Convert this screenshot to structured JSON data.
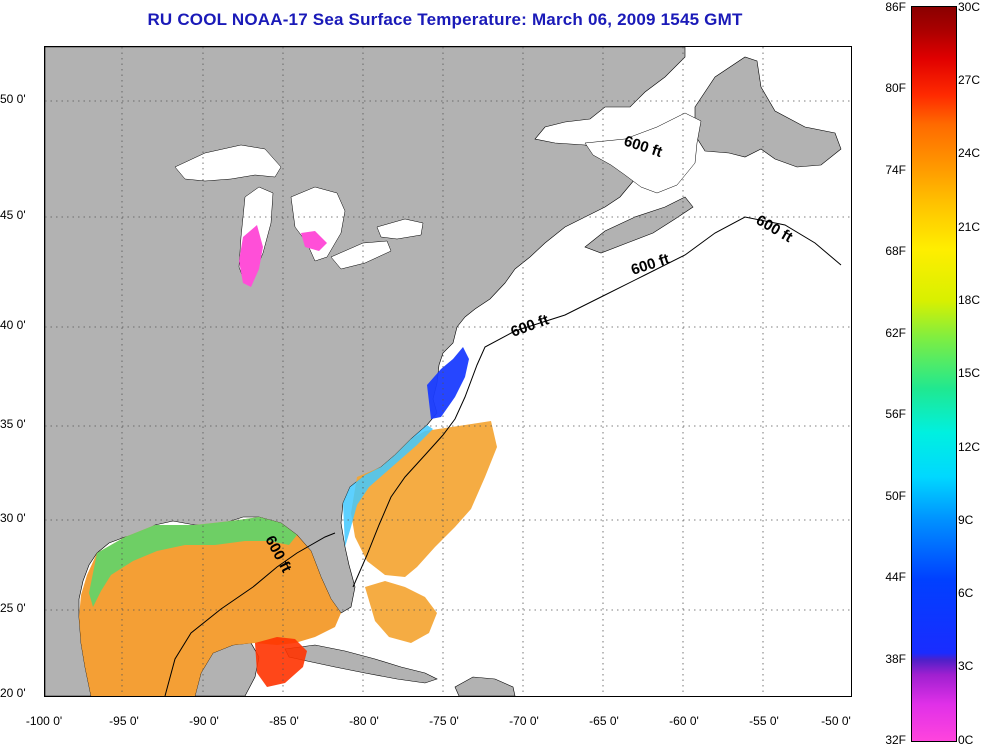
{
  "title": "RU COOL  NOAA-17  Sea Surface Temperature:  March 06, 2009 1545 GMT",
  "map": {
    "latitude_labels": [
      "50 0'",
      "45 0'",
      "40 0'",
      "35 0'",
      "30 0'",
      "25 0'",
      "20 0'"
    ],
    "longitude_labels": [
      "-100 0'",
      "-95 0'",
      "-90 0'",
      "-85 0'",
      "-80 0'",
      "-75 0'",
      "-70 0'",
      "-65 0'",
      "-60 0'",
      "-55 0'",
      "-50 0'"
    ],
    "contour_label": "600 ft",
    "colors": {
      "land": "#b2b2b2",
      "ocean_nodata": "#ffffff",
      "gridline": "#555555",
      "title": "#1a1ab8"
    }
  },
  "colorbar": {
    "fahrenheit_labels": [
      "86F",
      "80F",
      "74F",
      "68F",
      "62F",
      "56F",
      "50F",
      "44F",
      "38F",
      "32F"
    ],
    "celsius_labels": [
      "30C",
      "27C",
      "24C",
      "21C",
      "18C",
      "15C",
      "12C",
      "9C",
      "6C",
      "3C",
      "0C"
    ]
  }
}
